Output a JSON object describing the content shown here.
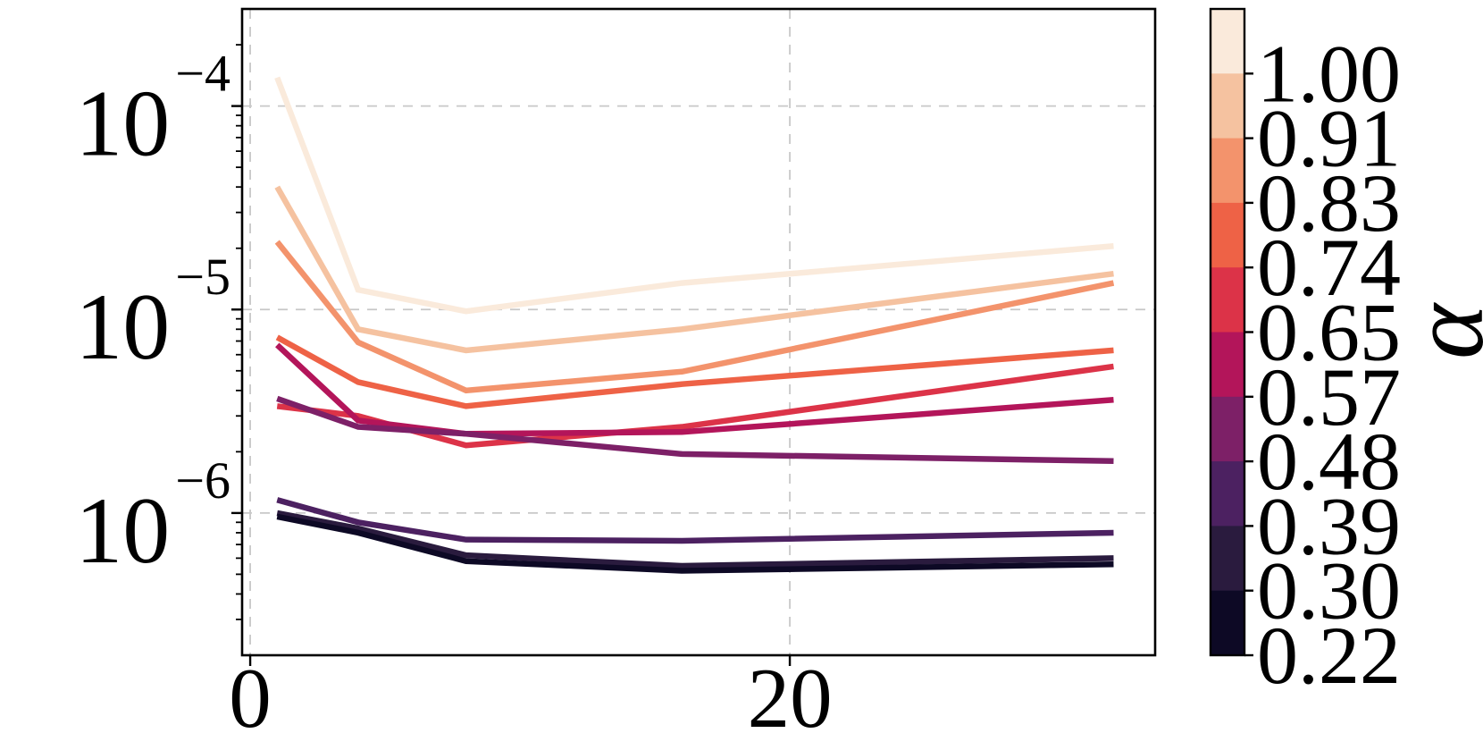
{
  "figure": {
    "background": "#ffffff"
  },
  "chart_data": {
    "type": "line",
    "title": "",
    "xlabel": "",
    "ylabel": "",
    "yscale": "log",
    "grid": true,
    "x": [
      1,
      4,
      8,
      16,
      32
    ],
    "xlim": [
      -0.3,
      33.54
    ],
    "ylim": [
      2e-07,
      0.0003
    ],
    "xticks": [
      0,
      20
    ],
    "xtick_labels": [
      "0",
      "20"
    ],
    "ytick_values": [
      0.0001,
      1e-05,
      1e-06
    ],
    "ytick_labels": [
      {
        "base": "10",
        "exp": "−4"
      },
      {
        "base": "10",
        "exp": "−5"
      },
      {
        "base": "10",
        "exp": "−6"
      }
    ],
    "series": [
      {
        "name": "α=1.00",
        "alpha": 1.0,
        "color": "#faeadb",
        "values": [
          0.000138,
          1.25e-05,
          9.8e-06,
          1.35e-05,
          2.05e-05
        ]
      },
      {
        "name": "α=0.91",
        "alpha": 0.91,
        "color": "#f5c2a0",
        "values": [
          4e-05,
          8e-06,
          6.3e-06,
          8e-06,
          1.5e-05
        ]
      },
      {
        "name": "α=0.83",
        "alpha": 0.83,
        "color": "#f3936c",
        "values": [
          2.15e-05,
          6.9e-06,
          4e-06,
          4.95e-06,
          1.35e-05
        ]
      },
      {
        "name": "α=0.74",
        "alpha": 0.74,
        "color": "#ee6246",
        "values": [
          7.3e-06,
          4.4e-06,
          3.35e-06,
          4.3e-06,
          6.3e-06
        ]
      },
      {
        "name": "α=0.65",
        "alpha": 0.65,
        "color": "#dc3348",
        "values": [
          3.35e-06,
          3e-06,
          2.15e-06,
          2.65e-06,
          5.25e-06
        ]
      },
      {
        "name": "α=0.57",
        "alpha": 0.57,
        "color": "#b3155a",
        "values": [
          6.7e-06,
          2.85e-06,
          2.45e-06,
          2.5e-06,
          3.6e-06
        ]
      },
      {
        "name": "α=0.48",
        "alpha": 0.48,
        "color": "#7d2067",
        "values": [
          3.65e-06,
          2.65e-06,
          2.45e-06,
          1.95e-06,
          1.8e-06
        ]
      },
      {
        "name": "α=0.39",
        "alpha": 0.39,
        "color": "#4c2161",
        "values": [
          1.16e-06,
          9e-07,
          7.4e-07,
          7.3e-07,
          8e-07
        ]
      },
      {
        "name": "α=0.30",
        "alpha": 0.3,
        "color": "#2a1b3e",
        "values": [
          1e-06,
          8.4e-07,
          6.2e-07,
          5.5e-07,
          6e-07
        ]
      },
      {
        "name": "α=0.22",
        "alpha": 0.22,
        "color": "#0d0925",
        "values": [
          9.6e-07,
          8e-07,
          5.8e-07,
          5.2e-07,
          5.6e-07
        ]
      }
    ],
    "legend_position": "none",
    "colorbar": {
      "label": "α",
      "tick_labels": [
        "1.00",
        "0.91",
        "0.83",
        "0.74",
        "0.65",
        "0.57",
        "0.48",
        "0.39",
        "0.30",
        "0.22"
      ],
      "band_colors": [
        "#faeadb",
        "#f5c2a0",
        "#f3936c",
        "#ee6246",
        "#dc3348",
        "#b3155a",
        "#7d2067",
        "#4c2161",
        "#2a1b3e",
        "#0d0925"
      ]
    }
  },
  "style": {
    "axis_color": "#000000",
    "grid_color": "#c8c8c8",
    "tick_label_color": "#000000",
    "plot_background": "#ffffff"
  }
}
